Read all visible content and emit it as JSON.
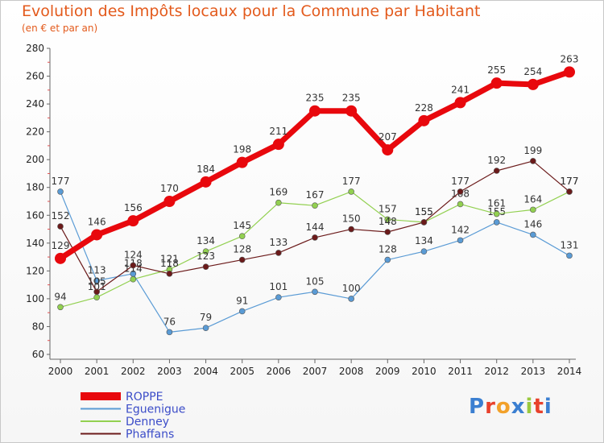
{
  "title": "Evolution des Impôts locaux pour la Commune par Habitant",
  "subtitle": "(en € et par an)",
  "logo_text": "Proxiti",
  "chart_data": {
    "type": "line",
    "x": [
      2000,
      2001,
      2002,
      2003,
      2004,
      2005,
      2006,
      2007,
      2008,
      2009,
      2010,
      2011,
      2012,
      2013,
      2014
    ],
    "ylim": [
      60,
      280
    ],
    "yticks": [
      60,
      80,
      100,
      120,
      140,
      160,
      180,
      200,
      220,
      240,
      260,
      280
    ],
    "grid": false,
    "legend_position": "bottom-left",
    "series": [
      {
        "name": "ROPPE",
        "color": "#e8080d",
        "width": 7,
        "marker": 7,
        "values": [
          129,
          146,
          156,
          170,
          184,
          198,
          211,
          235,
          235,
          207,
          228,
          241,
          255,
          254,
          263
        ],
        "labels": [
          "129",
          "146",
          "156",
          "170",
          "184",
          "198",
          "211",
          "235",
          "235",
          "207",
          "228",
          "241",
          "255",
          "254",
          "263"
        ]
      },
      {
        "name": "Eguenigue",
        "color": "#5a9bd5",
        "width": 1.2,
        "marker": 3.5,
        "values": [
          177,
          113,
          118,
          76,
          79,
          91,
          101,
          105,
          100,
          128,
          134,
          142,
          155,
          146,
          131
        ],
        "labels": [
          "177",
          "113",
          "118",
          "76",
          "79",
          "91",
          "101",
          "105",
          "100",
          "128",
          "134",
          "142",
          "155",
          "146",
          "131"
        ]
      },
      {
        "name": "Denney",
        "color": "#92d050",
        "width": 1.2,
        "marker": 3.5,
        "values": [
          94,
          101,
          114,
          121,
          134,
          145,
          169,
          167,
          177,
          157,
          155,
          168,
          161,
          164,
          177
        ],
        "labels": [
          "94",
          "101",
          "114",
          "121",
          "134",
          "145",
          "169",
          "167",
          "177",
          "157",
          "155",
          "168",
          "161",
          "164",
          "177"
        ]
      },
      {
        "name": "Phaffans",
        "color": "#6b1a1a",
        "width": 1.2,
        "marker": 3.5,
        "values": [
          152,
          105,
          124,
          118,
          123,
          128,
          133,
          144,
          150,
          148,
          155,
          177,
          192,
          199,
          177
        ],
        "labels": [
          "152",
          "105",
          "124",
          "118",
          "123",
          "128",
          "133",
          "144",
          "150",
          "148",
          "155",
          "177",
          "192",
          "199",
          "177"
        ]
      }
    ]
  }
}
